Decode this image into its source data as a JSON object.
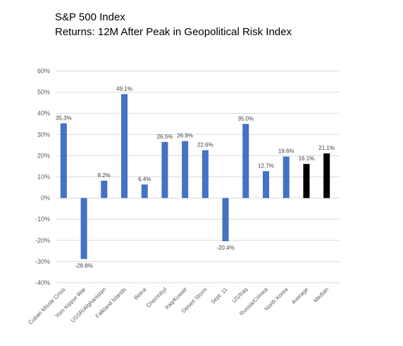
{
  "chart_data": {
    "type": "bar",
    "title": "S&P 500 Index",
    "subtitle": "Returns: 12M After Peak in Geopolitical Risk Index",
    "xlabel": "",
    "ylabel": "",
    "categories": [
      "Cuban Missle Crisis",
      "Yom Kippur War",
      "USSR/Afghanistan",
      "Falkland Islands",
      "Beirut",
      "Chernobyl",
      "Iraq/Kuwait",
      "Desert Storm",
      "Sept. 11",
      "US/Iraq",
      "Russia/Crimea",
      "North Korea",
      "Average",
      "Median"
    ],
    "values": [
      35.3,
      -28.8,
      8.2,
      49.1,
      6.4,
      26.5,
      26.9,
      22.6,
      -20.4,
      35.0,
      12.7,
      19.6,
      16.1,
      21.1
    ],
    "data_labels": [
      "35.3%",
      "-28.8%",
      "8.2%",
      "49.1%",
      "6.4%",
      "26.5%",
      "26.9%",
      "22.6%",
      "-20.4%",
      "35.0%",
      "12.7%",
      "19.6%",
      "16.1%",
      "21.1%"
    ],
    "yticks": [
      "60%",
      "50%",
      "40%",
      "30%",
      "20%",
      "10%",
      "0%",
      "-10%",
      "-20%",
      "-30%",
      "-40%"
    ],
    "ylim": [
      -40,
      60
    ],
    "grid": true,
    "legend": "none",
    "colors": {
      "bar": "#4472C4",
      "summary_bar": "#000000",
      "grid": "#D9D9D9"
    }
  }
}
